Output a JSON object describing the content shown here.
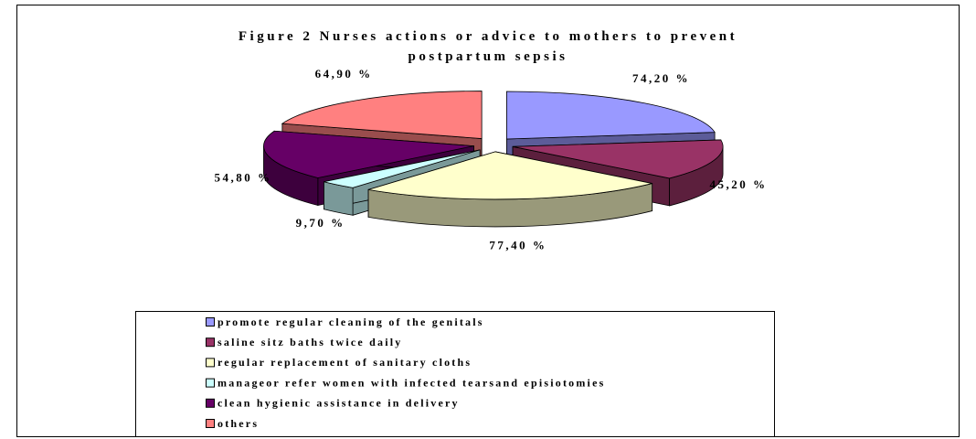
{
  "chart_data": {
    "type": "pie",
    "title": "Figure 2 Nurses actions or advice to mothers to prevent postpartum sepsis",
    "categories": [
      "promote regular cleaning of the genitals",
      "saline sitz baths twice daily",
      "regular replacement of sanitary cloths",
      "manageor refer women with infected tearsand episiotomies",
      "clean hygienic assistance in delivery",
      "others"
    ],
    "values": [
      74.2,
      45.2,
      77.4,
      9.7,
      54.8,
      64.9
    ],
    "value_labels": [
      "74,20 %",
      "45,20 %",
      "77,40 %",
      "9,70 %",
      "54,80 %",
      "64,90 %"
    ],
    "colors": [
      "#9999ff",
      "#993366",
      "#ffffcc",
      "#ccffff",
      "#660066",
      "#ff8080"
    ],
    "legend": "bottom"
  }
}
